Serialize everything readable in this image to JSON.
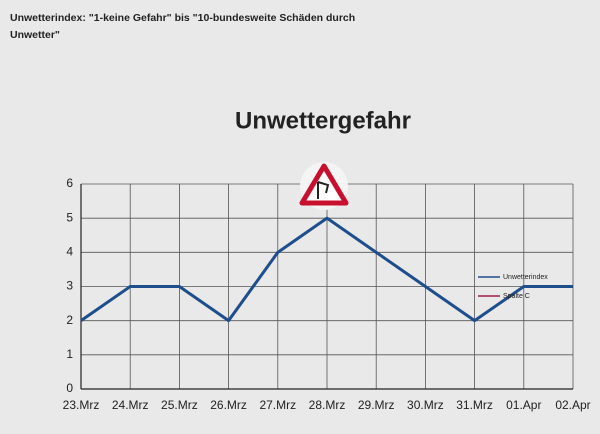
{
  "header": {
    "text": "Unwetterindex: \"1-keine Gefahr\" bis \"10-bundesweite Schäden durch Unwetter\""
  },
  "chart_data": {
    "type": "line",
    "title": "Unwettergefahr",
    "categories": [
      "23.Mrz",
      "24.Mrz",
      "25.Mrz",
      "26.Mrz",
      "27.Mrz",
      "28.Mrz",
      "29.Mrz",
      "30.Mrz",
      "31.Mrz",
      "01.Apr",
      "02.Apr"
    ],
    "series": [
      {
        "name": "Unwetterindex",
        "color": "#1f4e8c",
        "values": [
          2,
          3,
          3,
          2,
          4,
          5,
          4,
          3,
          2,
          3,
          3
        ]
      },
      {
        "name": "Spalte C",
        "color": "#a0204a",
        "values": [
          null,
          null,
          null,
          null,
          null,
          null,
          null,
          null,
          null,
          null,
          null
        ]
      }
    ],
    "ylim": [
      0,
      6
    ],
    "yticks": [
      0,
      1,
      2,
      3,
      4,
      5,
      6
    ],
    "grid": true
  }
}
